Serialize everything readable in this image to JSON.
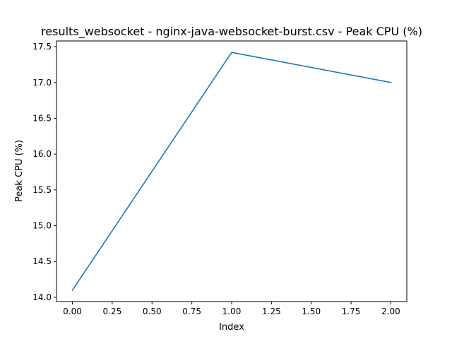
{
  "chart_data": {
    "type": "line",
    "title": "results_websocket - nginx-java-websocket-burst.csv - Peak CPU (%)",
    "xlabel": "Index",
    "ylabel": "Peak CPU (%)",
    "x": [
      0,
      1,
      2
    ],
    "series": [
      {
        "values": [
          14.1,
          17.42,
          17.0
        ],
        "color": "#1f77b4"
      }
    ],
    "xlim": [
      -0.1,
      2.1
    ],
    "ylim": [
      13.94,
      17.58
    ],
    "xticks": [
      0.0,
      0.25,
      0.5,
      0.75,
      1.0,
      1.25,
      1.5,
      1.75,
      2.0
    ],
    "xtick_labels": [
      "0.00",
      "0.25",
      "0.50",
      "0.75",
      "1.00",
      "1.25",
      "1.50",
      "1.75",
      "2.00"
    ],
    "yticks": [
      14.0,
      14.5,
      15.0,
      15.5,
      16.0,
      16.5,
      17.0,
      17.5
    ],
    "ytick_labels": [
      "14.0",
      "14.5",
      "15.0",
      "15.5",
      "16.0",
      "16.5",
      "17.0",
      "17.5"
    ],
    "grid": false,
    "legend": false
  }
}
